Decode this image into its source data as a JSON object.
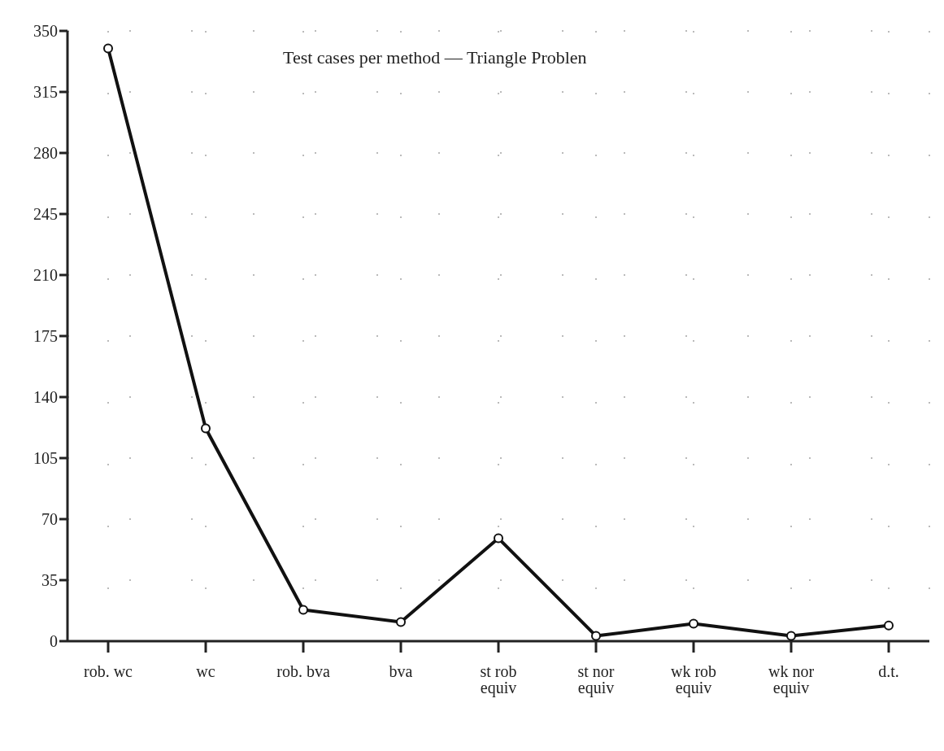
{
  "chart_data": {
    "type": "line",
    "title": "Test cases per method — Triangle Problen",
    "categories": [
      "rob. wc",
      "wc",
      "rob. bva",
      "bva",
      "st rob equiv",
      "st nor equiv",
      "wk rob equiv",
      "wk nor equiv",
      "d.t."
    ],
    "series": [
      {
        "color": "#111111",
        "values": [
          340,
          122,
          18,
          11,
          59,
          3,
          10,
          3,
          9
        ]
      }
    ],
    "ylim": [
      0,
      350
    ],
    "yticks": [
      0,
      35,
      70,
      105,
      140,
      175,
      210,
      245,
      280,
      315,
      350
    ],
    "grid": true,
    "marker": "circle",
    "line_style": "solid",
    "legend": false
  }
}
